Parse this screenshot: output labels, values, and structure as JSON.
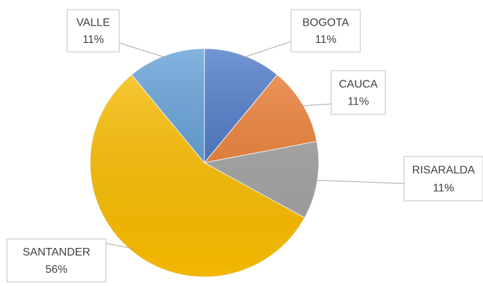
{
  "chart_data": {
    "type": "pie",
    "categories": [
      "BOGOTA",
      "CAUCA",
      "RISARALDA",
      "SANTANDER",
      "VALLE"
    ],
    "values": [
      11,
      11,
      11,
      56,
      11
    ],
    "value_labels": [
      "11%",
      "11%",
      "11%",
      "56%",
      "11%"
    ],
    "colors": [
      "#4472c4",
      "#ed7d31",
      "#a5a5a5",
      "#ffc000",
      "#5b9bd5"
    ]
  }
}
